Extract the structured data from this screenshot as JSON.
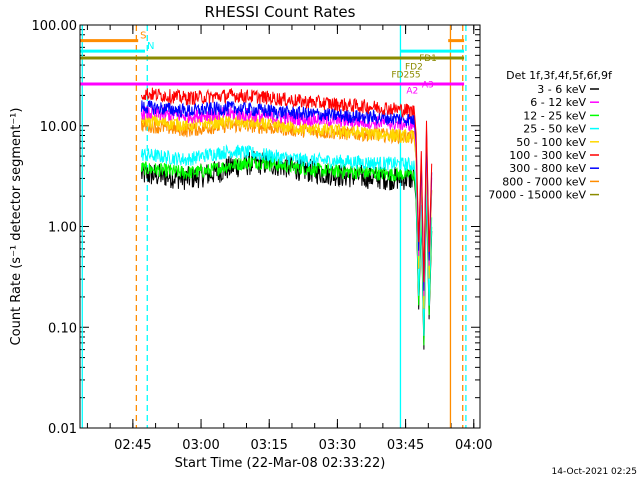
{
  "chart_data": {
    "type": "line",
    "title": "RHESSI Count Rates",
    "ylabel": "Count Rate (s⁻¹ detector segment⁻¹)",
    "xlabel": "Start Time (22-Mar-08 02:33:22)",
    "yscale": "log",
    "ylim": [
      0.01,
      100
    ],
    "xlim_minutes_after_start": [
      0,
      88
    ],
    "y_ticks": [
      "0.01",
      "0.10",
      "1.00",
      "10.00",
      "100.00"
    ],
    "x_ticks": [
      "02:45",
      "03:00",
      "03:15",
      "03:30",
      "03:45",
      "04:00"
    ],
    "legend": {
      "placement": "right",
      "header": "Det 1f,3f,4f,5f,6f,9f",
      "entries": [
        {
          "label": "3 - 6 keV",
          "color": "#000000"
        },
        {
          "label": "6 - 12 keV",
          "color": "#ff00ff"
        },
        {
          "label": "12 - 25 keV",
          "color": "#00ff00"
        },
        {
          "label": "25 - 50 keV",
          "color": "#00ffff"
        },
        {
          "label": "50 - 100 keV",
          "color": "#ffd700"
        },
        {
          "label": "100 - 300 keV",
          "color": "#ff0000"
        },
        {
          "label": "300 - 800 keV",
          "color": "#0000ff"
        },
        {
          "label": "800 - 7000 keV",
          "color": "#ff8c00"
        },
        {
          "label": "7000 - 15000 keV",
          "color": "#8b8b00"
        }
      ]
    },
    "series": [
      {
        "name": "3 - 6 keV",
        "color": "#000000",
        "start_min": 13.5,
        "end_min": 73.5,
        "values": [
          3.3,
          3.2,
          3.0,
          3.3,
          3.9,
          4.3,
          4.1,
          3.7,
          3.4,
          3.2,
          3.1,
          3.0,
          3.0
        ]
      },
      {
        "name": "12 - 25 keV",
        "color": "#00ff00",
        "start_min": 13.5,
        "end_min": 73.5,
        "values": [
          3.8,
          3.6,
          3.4,
          3.6,
          4.1,
          4.4,
          4.1,
          3.8,
          3.6,
          3.5,
          3.4,
          3.3,
          3.3
        ]
      },
      {
        "name": "25 - 50 keV",
        "color": "#00ffff",
        "start_min": 13.5,
        "end_min": 73.5,
        "values": [
          5.2,
          4.9,
          4.6,
          5.2,
          5.6,
          5.3,
          4.9,
          4.6,
          4.5,
          4.4,
          4.3,
          4.2,
          4.1
        ]
      },
      {
        "name": "800 - 7000 keV",
        "color": "#ff8c00",
        "start_min": 13.5,
        "end_min": 73.5,
        "values": [
          10.2,
          9.6,
          9.0,
          9.6,
          10.1,
          9.9,
          9.4,
          9.0,
          8.7,
          8.4,
          8.2,
          8.0,
          7.6
        ]
      },
      {
        "name": "50 - 100 keV",
        "color": "#ffd700",
        "start_min": 13.5,
        "end_min": 73.5,
        "values": [
          11.5,
          10.8,
          10.1,
          10.7,
          11.0,
          10.6,
          10.0,
          9.5,
          9.1,
          8.7,
          8.4,
          8.1,
          7.7
        ]
      },
      {
        "name": "6 - 12 keV",
        "color": "#ff00ff",
        "start_min": 13.5,
        "end_min": 73.5,
        "values": [
          13.5,
          13.0,
          12.4,
          12.9,
          13.2,
          12.7,
          12.2,
          11.8,
          11.5,
          11.2,
          10.9,
          10.6,
          10.2
        ]
      },
      {
        "name": "300 - 800 keV",
        "color": "#0000ff",
        "start_min": 13.5,
        "end_min": 73.5,
        "values": [
          15.5,
          14.8,
          14.0,
          14.6,
          15.0,
          14.4,
          13.8,
          13.3,
          12.9,
          12.5,
          12.2,
          11.9,
          11.5
        ]
      },
      {
        "name": "100 - 300 keV",
        "color": "#ff0000",
        "start_min": 13.5,
        "end_min": 73.5,
        "values": [
          21.0,
          20.0,
          18.8,
          19.4,
          20.0,
          19.5,
          18.5,
          17.5,
          16.8,
          16.0,
          15.5,
          14.8,
          14.0
        ]
      }
    ],
    "flag_lines": [
      {
        "label": "S",
        "color": "#ff8c00",
        "y": 70,
        "segments": [
          [
            0,
            12.8
          ],
          [
            81,
            84.5
          ]
        ]
      },
      {
        "label": "N",
        "color": "#00ffff",
        "y": 55,
        "segments": [
          [
            0,
            14.3
          ],
          [
            70.5,
            84.5
          ]
        ]
      },
      {
        "label": "",
        "color": "#8b8b00",
        "y": 47,
        "segments": [
          [
            0,
            84.5
          ]
        ]
      },
      {
        "label": "",
        "color": "#ff00ff",
        "y": 26,
        "segments": [
          [
            0,
            84.5
          ]
        ]
      }
    ],
    "vertical_markers": [
      {
        "color": "#00ffff",
        "style": "solid",
        "x_min": 0.5
      },
      {
        "color": "#ff8c00",
        "style": "dashed",
        "x_min": 12.4
      },
      {
        "color": "#00ffff",
        "style": "dashed",
        "x_min": 14.8
      },
      {
        "color": "#00ffff",
        "style": "solid",
        "x_min": 70.5
      },
      {
        "color": "#ff8c00",
        "style": "solid",
        "x_min": 81.5
      },
      {
        "color": "#ff8c00",
        "style": "dashed",
        "x_min": 84.2
      },
      {
        "color": "#00ffff",
        "style": "dashed",
        "x_min": 84.9
      }
    ],
    "annotations": [
      {
        "text": "FD1",
        "color": "#8b8b00",
        "x_min": 74.6,
        "y": 44
      },
      {
        "text": "FD2",
        "color": "#8b8b00",
        "x_min": 71.5,
        "y": 36
      },
      {
        "text": "FD255",
        "color": "#8b8b00",
        "x_min": 68.5,
        "y": 30
      },
      {
        "text": "A2",
        "color": "#ff00ff",
        "x_min": 71.8,
        "y": 21
      },
      {
        "text": "A3",
        "color": "#ff00ff",
        "x_min": 75.2,
        "y": 24
      }
    ],
    "timestamp": "14-Oct-2021 02:25"
  }
}
